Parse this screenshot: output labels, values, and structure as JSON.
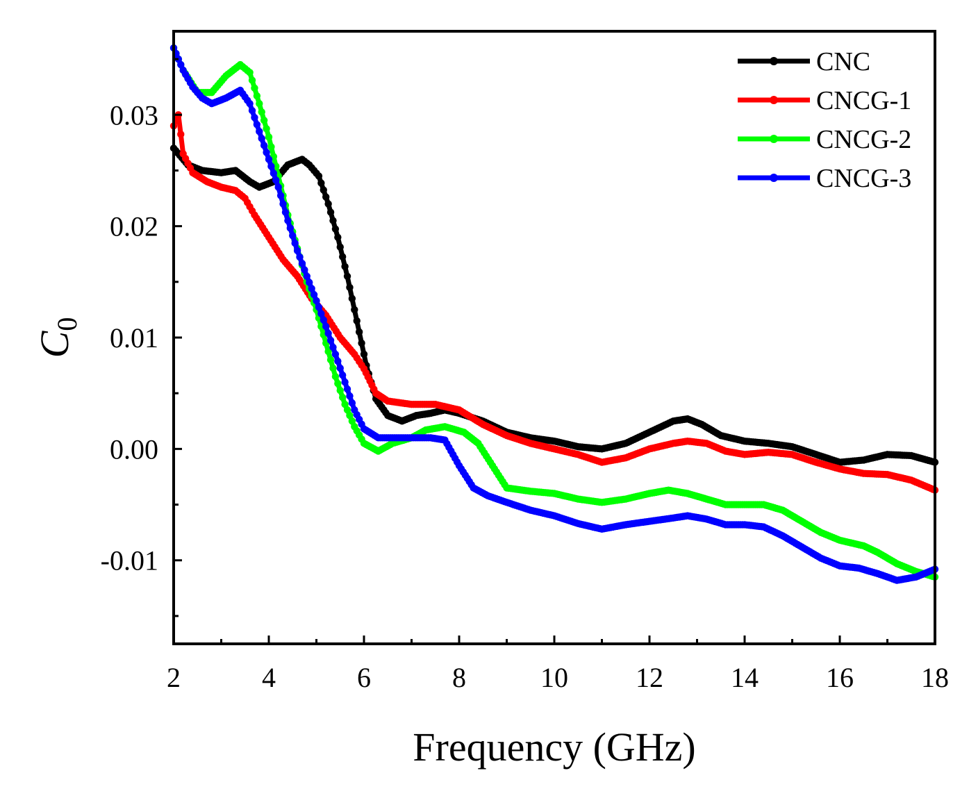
{
  "chart_data": {
    "type": "line",
    "title": "",
    "xlabel": "Frequency (GHz)",
    "ylabel": "C0",
    "ylabel_main": "C",
    "ylabel_sub": "0",
    "xlim": [
      2,
      18
    ],
    "ylim": [
      -0.0175,
      0.0375
    ],
    "x_ticks": [
      2,
      4,
      6,
      8,
      10,
      12,
      14,
      16,
      18
    ],
    "x_tick_labels": [
      "2",
      "4",
      "6",
      "8",
      "10",
      "12",
      "14",
      "16",
      "18"
    ],
    "y_ticks": [
      -0.01,
      0,
      0.01,
      0.02,
      0.03
    ],
    "y_tick_labels": [
      "-0.01",
      "0.00",
      "0.01",
      "0.02",
      "0.03"
    ],
    "grid": false,
    "legend_position": "top-right",
    "series": [
      {
        "name": "CNC",
        "color": "#000000",
        "points": [
          [
            2.0,
            0.027
          ],
          [
            2.3,
            0.0255
          ],
          [
            2.6,
            0.025
          ],
          [
            3.0,
            0.0248
          ],
          [
            3.3,
            0.025
          ],
          [
            3.6,
            0.024
          ],
          [
            3.8,
            0.0235
          ],
          [
            4.1,
            0.024
          ],
          [
            4.4,
            0.0255
          ],
          [
            4.7,
            0.026
          ],
          [
            4.85,
            0.0255
          ],
          [
            5.05,
            0.0245
          ],
          [
            5.25,
            0.022
          ],
          [
            5.45,
            0.019
          ],
          [
            5.65,
            0.0155
          ],
          [
            5.85,
            0.0115
          ],
          [
            6.05,
            0.0075
          ],
          [
            6.25,
            0.0045
          ],
          [
            6.5,
            0.003
          ],
          [
            6.8,
            0.0025
          ],
          [
            7.1,
            0.003
          ],
          [
            7.4,
            0.0032
          ],
          [
            7.7,
            0.0035
          ],
          [
            8.0,
            0.0032
          ],
          [
            8.5,
            0.0025
          ],
          [
            9.0,
            0.0015
          ],
          [
            9.5,
            0.001
          ],
          [
            10.0,
            0.0007
          ],
          [
            10.5,
            0.0002
          ],
          [
            11.0,
            0.0
          ],
          [
            11.5,
            0.0005
          ],
          [
            12.0,
            0.0015
          ],
          [
            12.5,
            0.0025
          ],
          [
            12.8,
            0.0027
          ],
          [
            13.1,
            0.0022
          ],
          [
            13.5,
            0.0012
          ],
          [
            14.0,
            0.0007
          ],
          [
            14.5,
            0.0005
          ],
          [
            15.0,
            0.0002
          ],
          [
            15.5,
            -0.0005
          ],
          [
            16.0,
            -0.0012
          ],
          [
            16.5,
            -0.001
          ],
          [
            17.0,
            -0.0005
          ],
          [
            17.5,
            -0.0006
          ],
          [
            18.0,
            -0.0012
          ]
        ]
      },
      {
        "name": "CNCG-1",
        "color": "#ff0000",
        "points": [
          [
            2.0,
            0.029
          ],
          [
            2.1,
            0.03
          ],
          [
            2.2,
            0.0265
          ],
          [
            2.4,
            0.0248
          ],
          [
            2.7,
            0.024
          ],
          [
            3.0,
            0.0235
          ],
          [
            3.3,
            0.0232
          ],
          [
            3.5,
            0.0225
          ],
          [
            3.7,
            0.021
          ],
          [
            4.0,
            0.019
          ],
          [
            4.3,
            0.017
          ],
          [
            4.6,
            0.0155
          ],
          [
            4.9,
            0.0135
          ],
          [
            5.2,
            0.012
          ],
          [
            5.5,
            0.01
          ],
          [
            5.8,
            0.0085
          ],
          [
            6.0,
            0.0072
          ],
          [
            6.25,
            0.005
          ],
          [
            6.5,
            0.0043
          ],
          [
            7.0,
            0.004
          ],
          [
            7.5,
            0.004
          ],
          [
            8.0,
            0.0035
          ],
          [
            8.5,
            0.0022
          ],
          [
            9.0,
            0.0012
          ],
          [
            9.5,
            0.0005
          ],
          [
            10.0,
            0.0
          ],
          [
            10.5,
            -0.0005
          ],
          [
            11.0,
            -0.0012
          ],
          [
            11.5,
            -0.0008
          ],
          [
            12.0,
            0.0
          ],
          [
            12.5,
            0.0005
          ],
          [
            12.8,
            0.0007
          ],
          [
            13.2,
            0.0005
          ],
          [
            13.6,
            -0.0002
          ],
          [
            14.0,
            -0.0005
          ],
          [
            14.5,
            -0.0003
          ],
          [
            15.0,
            -0.0005
          ],
          [
            15.5,
            -0.0012
          ],
          [
            16.0,
            -0.0018
          ],
          [
            16.5,
            -0.0022
          ],
          [
            17.0,
            -0.0023
          ],
          [
            17.5,
            -0.0028
          ],
          [
            18.0,
            -0.0037
          ]
        ]
      },
      {
        "name": "CNCG-2",
        "color": "#00ff00",
        "points": [
          [
            2.0,
            0.036
          ],
          [
            2.2,
            0.034
          ],
          [
            2.5,
            0.032
          ],
          [
            2.8,
            0.032
          ],
          [
            3.1,
            0.0335
          ],
          [
            3.4,
            0.0345
          ],
          [
            3.6,
            0.0338
          ],
          [
            3.8,
            0.031
          ],
          [
            4.0,
            0.028
          ],
          [
            4.2,
            0.0245
          ],
          [
            4.4,
            0.021
          ],
          [
            4.6,
            0.018
          ],
          [
            4.8,
            0.015
          ],
          [
            5.0,
            0.0125
          ],
          [
            5.2,
            0.0095
          ],
          [
            5.4,
            0.0065
          ],
          [
            5.6,
            0.004
          ],
          [
            5.8,
            0.002
          ],
          [
            6.0,
            0.0005
          ],
          [
            6.3,
            -0.0002
          ],
          [
            6.6,
            0.0005
          ],
          [
            7.0,
            0.001
          ],
          [
            7.3,
            0.0017
          ],
          [
            7.7,
            0.002
          ],
          [
            8.1,
            0.0015
          ],
          [
            8.4,
            0.0005
          ],
          [
            8.7,
            -0.0015
          ],
          [
            9.0,
            -0.0035
          ],
          [
            9.5,
            -0.0038
          ],
          [
            10.0,
            -0.004
          ],
          [
            10.5,
            -0.0045
          ],
          [
            11.0,
            -0.0048
          ],
          [
            11.5,
            -0.0045
          ],
          [
            12.0,
            -0.004
          ],
          [
            12.4,
            -0.0037
          ],
          [
            12.8,
            -0.004
          ],
          [
            13.2,
            -0.0045
          ],
          [
            13.6,
            -0.005
          ],
          [
            14.0,
            -0.005
          ],
          [
            14.4,
            -0.005
          ],
          [
            14.8,
            -0.0055
          ],
          [
            15.2,
            -0.0065
          ],
          [
            15.6,
            -0.0075
          ],
          [
            16.0,
            -0.0082
          ],
          [
            16.5,
            -0.0087
          ],
          [
            16.8,
            -0.0093
          ],
          [
            17.2,
            -0.0103
          ],
          [
            17.6,
            -0.011
          ],
          [
            18.0,
            -0.0115
          ]
        ]
      },
      {
        "name": "CNCG-3",
        "color": "#0000ff",
        "points": [
          [
            2.0,
            0.036
          ],
          [
            2.2,
            0.034
          ],
          [
            2.4,
            0.0325
          ],
          [
            2.6,
            0.0315
          ],
          [
            2.8,
            0.031
          ],
          [
            3.1,
            0.0315
          ],
          [
            3.4,
            0.0322
          ],
          [
            3.6,
            0.031
          ],
          [
            3.8,
            0.0285
          ],
          [
            4.0,
            0.026
          ],
          [
            4.2,
            0.0235
          ],
          [
            4.4,
            0.0205
          ],
          [
            4.6,
            0.0178
          ],
          [
            4.8,
            0.0155
          ],
          [
            5.0,
            0.0133
          ],
          [
            5.2,
            0.011
          ],
          [
            5.4,
            0.0085
          ],
          [
            5.6,
            0.006
          ],
          [
            5.8,
            0.0035
          ],
          [
            6.0,
            0.0018
          ],
          [
            6.3,
            0.001
          ],
          [
            6.6,
            0.001
          ],
          [
            7.0,
            0.001
          ],
          [
            7.4,
            0.001
          ],
          [
            7.7,
            0.0008
          ],
          [
            8.0,
            -0.0015
          ],
          [
            8.3,
            -0.0035
          ],
          [
            8.6,
            -0.0042
          ],
          [
            9.0,
            -0.0048
          ],
          [
            9.5,
            -0.0055
          ],
          [
            10.0,
            -0.006
          ],
          [
            10.5,
            -0.0067
          ],
          [
            11.0,
            -0.0072
          ],
          [
            11.5,
            -0.0068
          ],
          [
            12.0,
            -0.0065
          ],
          [
            12.5,
            -0.0062
          ],
          [
            12.8,
            -0.006
          ],
          [
            13.2,
            -0.0063
          ],
          [
            13.6,
            -0.0068
          ],
          [
            14.0,
            -0.0068
          ],
          [
            14.4,
            -0.007
          ],
          [
            14.8,
            -0.0078
          ],
          [
            15.2,
            -0.0088
          ],
          [
            15.6,
            -0.0098
          ],
          [
            16.0,
            -0.0105
          ],
          [
            16.4,
            -0.0107
          ],
          [
            16.8,
            -0.0112
          ],
          [
            17.2,
            -0.0118
          ],
          [
            17.6,
            -0.0115
          ],
          [
            18.0,
            -0.0108
          ]
        ]
      }
    ]
  }
}
